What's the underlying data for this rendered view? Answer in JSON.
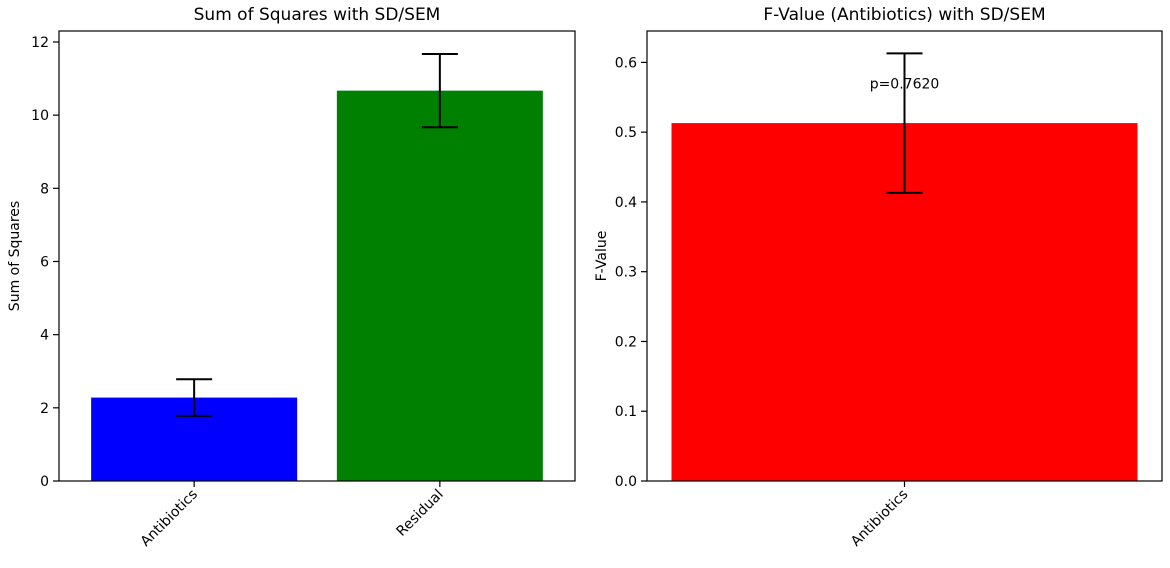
{
  "chart_data": [
    {
      "type": "bar",
      "title": "Sum of Squares with SD/SEM",
      "xlabel": "",
      "ylabel": "Sum of Squares",
      "categories": [
        "Antibiotics",
        "Residual"
      ],
      "values": [
        2.28,
        10.67
      ],
      "errors": [
        0.5,
        1.0
      ],
      "colors": [
        "#0000ff",
        "#008000"
      ],
      "ylim": [
        0,
        12.3
      ],
      "yticks": [
        "0",
        "2",
        "4",
        "6",
        "8",
        "10",
        "12"
      ],
      "grid": false,
      "annotations": []
    },
    {
      "type": "bar",
      "title": "F-Value (Antibiotics) with SD/SEM",
      "xlabel": "",
      "ylabel": "F-Value",
      "categories": [
        "Antibiotics"
      ],
      "values": [
        0.513
      ],
      "errors": [
        0.1
      ],
      "colors": [
        "#ff0000"
      ],
      "ylim": [
        0,
        0.645
      ],
      "yticks": [
        "0.0",
        "0.1",
        "0.2",
        "0.3",
        "0.4",
        "0.5",
        "0.6"
      ],
      "grid": false,
      "annotations": [
        {
          "text": "p=0.7620",
          "x": 0,
          "y": 0.57
        }
      ]
    }
  ]
}
